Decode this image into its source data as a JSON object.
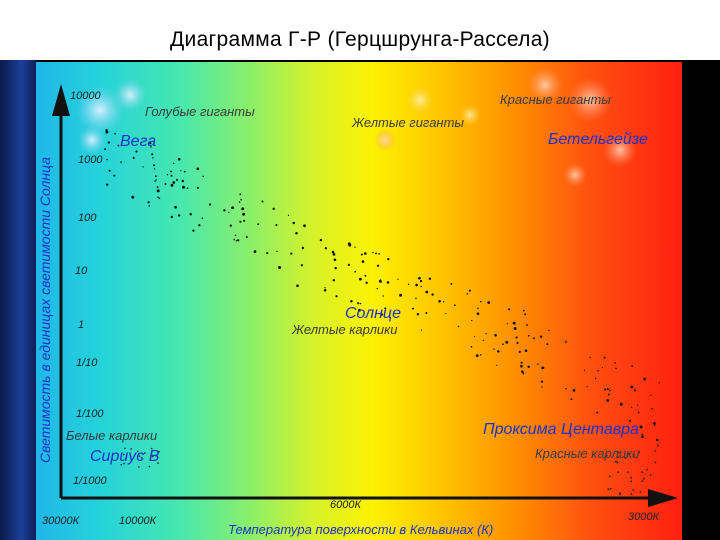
{
  "title": "Диаграмма Г-Р (Герцшрунга-Рассела)",
  "axes": {
    "ylabel": "Светимость в единицах светимости Солнца",
    "xlabel": "Температура поверхности в Кельвинах (К)",
    "y_ticks": [
      "10000",
      "1000",
      "100",
      "10",
      "1",
      "1/10",
      "1/100",
      "1/1000"
    ],
    "x_ticks": [
      "30000К",
      "10000К",
      "6000К",
      "3000К"
    ]
  },
  "regions": {
    "blue_giants": "Голубые гиганты",
    "yellow_giants": "Желтые гиганты",
    "red_giants": "Красные гиганты",
    "yellow_dwarfs": "Желтые карлики",
    "white_dwarfs": "Белые карлики",
    "red_dwarfs": "Красные карлики"
  },
  "stars": {
    "vega": "Вега",
    "betelgeuse": "Бетельгейзе",
    "sun": "Солнце",
    "sirius_b": "Сириус В",
    "proxima": "Проксима Центавра"
  },
  "colors": {
    "star_label_blue": "#1e32c8",
    "region_label": "#3a3a3a",
    "axis": "#111111"
  }
}
